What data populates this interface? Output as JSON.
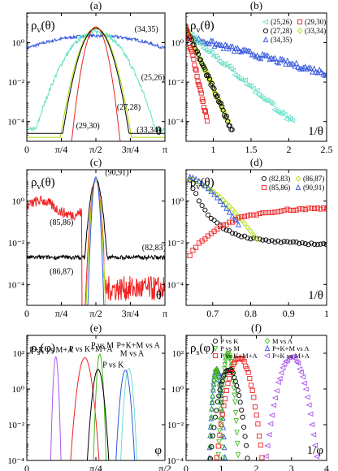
{
  "figure": {
    "panels": [
      {
        "id": "a",
        "label": "(a)",
        "ylabel": "ρv(θ)",
        "xlabel": "θ"
      },
      {
        "id": "b",
        "label": "(b)",
        "ylabel": "ρv(θ)",
        "xlabel": "1/θ"
      },
      {
        "id": "c",
        "label": "(c)",
        "ylabel": "ρv(θ)",
        "xlabel": "θ"
      },
      {
        "id": "d",
        "label": "(d)",
        "ylabel": "ρv(θ)",
        "xlabel": "1/θ"
      },
      {
        "id": "e",
        "label": "(e)",
        "ylabel": "ρs(φ)",
        "xlabel": "φ"
      },
      {
        "id": "f",
        "label": "(f)",
        "ylabel": "ρs(φ)",
        "xlabel": "1/φ"
      }
    ]
  },
  "chart_data": [
    {
      "panel": "a",
      "type": "line",
      "title": "(a)",
      "xlabel": "θ",
      "ylabel": "ρv(θ)",
      "xlim": [
        0,
        3.1416
      ],
      "ylim_log10": [
        -5,
        1.5
      ],
      "yscale": "log",
      "xticks": [
        {
          "v": 0,
          "t": "0"
        },
        {
          "v": 0.7854,
          "t": "π/4"
        },
        {
          "v": 1.5708,
          "t": "π/2"
        },
        {
          "v": 2.3562,
          "t": "3π/4"
        },
        {
          "v": 3.1416,
          "t": "π"
        }
      ],
      "yticks": [
        {
          "v": 0,
          "t": "10⁰"
        },
        {
          "v": -2,
          "t": "10⁻²"
        },
        {
          "v": -4,
          "t": "10⁻⁴"
        }
      ],
      "series": [
        {
          "name": "(34,35)",
          "color": "#3355dd",
          "kind": "gauss",
          "peak": 0.35,
          "width": 2.4,
          "floor": -1.8,
          "noise": 0.08
        },
        {
          "name": "(25,26)",
          "color": "#66e0c8",
          "kind": "gauss",
          "peak": 0.55,
          "width": 0.75,
          "floor": -4.4,
          "noise": 0.12
        },
        {
          "name": "(33,34)",
          "color": "#aadd00",
          "kind": "gauss",
          "peak": 0.75,
          "width": 0.42,
          "floor": -4.8,
          "noise": 0.0
        },
        {
          "name": "(27,28)",
          "color": "#000000",
          "kind": "gauss",
          "peak": 0.72,
          "width": 0.4,
          "floor": -4.6,
          "noise": 0.0
        },
        {
          "name": "(29,30)",
          "color": "#ee2222",
          "kind": "gauss",
          "peak": 0.8,
          "width": 0.28,
          "floor": -5,
          "noise": 0.0
        }
      ],
      "annotations": [
        {
          "text": "(34,35)",
          "x": 2.45,
          "y": 0.55,
          "color": "#3355dd"
        },
        {
          "text": "(25,26)",
          "x": 2.6,
          "y": -1.9,
          "color": "#66e0c8"
        },
        {
          "text": "(27,28)",
          "x": 2.05,
          "y": -3.4,
          "color": "#000000"
        },
        {
          "text": "(29,30)",
          "x": 1.12,
          "y": -4.35,
          "color": "#ee2222"
        },
        {
          "text": "(33,34)",
          "x": 2.5,
          "y": -4.55,
          "color": "#aadd00"
        }
      ]
    },
    {
      "panel": "b",
      "type": "scatter",
      "title": "(b)",
      "xlabel": "1/θ",
      "ylabel": "ρv(θ)",
      "xlim": [
        0.64,
        2.5
      ],
      "ylim_log10": [
        -5,
        1.5
      ],
      "yscale": "log",
      "xticks": [
        {
          "v": 1,
          "t": "1"
        },
        {
          "v": 1.5,
          "t": "1.5"
        },
        {
          "v": 2,
          "t": "2"
        },
        {
          "v": 2.5,
          "t": "2.5"
        }
      ],
      "yticks": [
        {
          "v": 0,
          "t": "10⁰"
        },
        {
          "v": -2,
          "t": "10⁻²"
        },
        {
          "v": -4,
          "t": "10⁻⁴"
        }
      ],
      "legend": [
        {
          "name": "(25,26)",
          "marker": "tri-left",
          "color": "#66e0c8"
        },
        {
          "name": "(29,30)",
          "marker": "square",
          "color": "#ee2222"
        },
        {
          "name": "(27,28)",
          "marker": "circle",
          "color": "#000000"
        },
        {
          "name": "(33,34)",
          "marker": "diamond",
          "color": "#aadd00"
        },
        {
          "name": "(34,35)",
          "marker": "tri-up",
          "color": "#3355dd"
        }
      ],
      "series": [
        {
          "name": "(34,35)",
          "color": "#3355dd",
          "marker": "tri-up",
          "x0": 0.64,
          "x1": 2.5,
          "y0": 0.3,
          "slope": -1.0,
          "n": 80
        },
        {
          "name": "(25,26)",
          "color": "#66e0c8",
          "marker": "tri-left",
          "x0": 0.64,
          "x1": 2.05,
          "y0": 0.6,
          "slope": -3.3,
          "n": 55
        },
        {
          "name": "(33,34)",
          "color": "#aadd00",
          "marker": "diamond",
          "x0": 0.64,
          "x1": 1.2,
          "y0": 0.75,
          "slope": -8.5,
          "n": 40
        },
        {
          "name": "(27,28)",
          "color": "#000000",
          "marker": "circle",
          "x0": 0.64,
          "x1": 1.25,
          "y0": 0.72,
          "slope": -8.5,
          "n": 42
        },
        {
          "name": "(29,30)",
          "color": "#ee2222",
          "marker": "square",
          "x0": 0.64,
          "x1": 0.92,
          "y0": 0.8,
          "slope": -17,
          "n": 26
        }
      ]
    },
    {
      "panel": "c",
      "type": "line",
      "title": "(c)",
      "xlabel": "θ",
      "ylabel": "ρv(θ)",
      "xlim": [
        0,
        3.1416
      ],
      "ylim_log10": [
        -5,
        1.5
      ],
      "yscale": "log",
      "xticks": [
        {
          "v": 0,
          "t": "0"
        },
        {
          "v": 0.7854,
          "t": "π/4"
        },
        {
          "v": 1.5708,
          "t": "π/2"
        },
        {
          "v": 2.3562,
          "t": "3π/4"
        },
        {
          "v": 3.1416,
          "t": "π"
        }
      ],
      "yticks": [
        {
          "v": 0,
          "t": "10⁰"
        },
        {
          "v": -2,
          "t": "10⁻²"
        },
        {
          "v": -4,
          "t": "10⁻⁴"
        }
      ],
      "series": [
        {
          "name": "(82,83)",
          "color": "#000000",
          "kind": "gauss",
          "peak": 1.0,
          "width": 0.16,
          "floor": -2.7,
          "noise": 0.1
        },
        {
          "name": "(85,86)",
          "color": "#ee2222",
          "kind": "custom"
        },
        {
          "name": "(86,87)",
          "color": "#aadd00",
          "kind": "gauss",
          "peak": 1.05,
          "width": 0.11,
          "floor": -5,
          "noise": 0.0
        },
        {
          "name": "(90,91)",
          "color": "#3355dd",
          "kind": "gauss",
          "peak": 1.15,
          "width": 0.09,
          "floor": -5,
          "noise": 0.0
        }
      ],
      "annotations": [
        {
          "text": "(90,91)",
          "x": 1.78,
          "y": 1.25,
          "color": "#3355dd"
        },
        {
          "text": "(85,86)",
          "x": 0.52,
          "y": -1.15,
          "color": "#ee2222"
        },
        {
          "text": "(82,83)",
          "x": 2.62,
          "y": -2.35,
          "color": "#000000"
        },
        {
          "text": "(86,87)",
          "x": 0.52,
          "y": -3.5,
          "color": "#aadd00"
        }
      ]
    },
    {
      "panel": "d",
      "type": "scatter",
      "title": "(d)",
      "xlabel": "1/θ",
      "ylabel": "ρv(θ)",
      "xlim": [
        0.63,
        1.0
      ],
      "ylim_log10": [
        -5,
        1.5
      ],
      "yscale": "log",
      "xticks": [
        {
          "v": 0.7,
          "t": "0.7"
        },
        {
          "v": 0.8,
          "t": "0.8"
        },
        {
          "v": 0.9,
          "t": "0.9"
        },
        {
          "v": 1.0,
          "t": "1"
        }
      ],
      "yticks": [
        {
          "v": 0,
          "t": "10⁰"
        },
        {
          "v": -2,
          "t": "10⁻²"
        },
        {
          "v": -4,
          "t": "10⁻⁴"
        }
      ],
      "legend": [
        {
          "name": "(82,83)",
          "marker": "circle",
          "color": "#000000"
        },
        {
          "name": "(86,87)",
          "marker": "diamond",
          "color": "#aadd00"
        },
        {
          "name": "(85,86)",
          "marker": "square",
          "color": "#ee2222"
        },
        {
          "name": "(90,91)",
          "marker": "tri-up",
          "color": "#3355dd"
        }
      ],
      "series": [
        {
          "name": "(82,83)",
          "color": "#000000",
          "marker": "circle",
          "kind": "d82"
        },
        {
          "name": "(86,87)",
          "color": "#aadd00",
          "marker": "diamond",
          "kind": "d86"
        },
        {
          "name": "(85,86)",
          "color": "#ee2222",
          "marker": "square",
          "kind": "d85"
        },
        {
          "name": "(90,91)",
          "color": "#3355dd",
          "marker": "tri-up",
          "kind": "d90"
        }
      ]
    },
    {
      "panel": "e",
      "type": "line",
      "title": "(e)",
      "xlabel": "φ",
      "ylabel": "ρs(φ)",
      "xlim": [
        0,
        1.5708
      ],
      "ylim_log10": [
        -4,
        3
      ],
      "yscale": "log",
      "xticks": [
        {
          "v": 0,
          "t": "0"
        },
        {
          "v": 0.7854,
          "t": "π/4"
        },
        {
          "v": 1.5708,
          "t": "π/2"
        }
      ],
      "yticks": [
        {
          "v": 2,
          "t": "10²"
        },
        {
          "v": 0,
          "t": "10⁰"
        },
        {
          "v": -2,
          "t": "10⁻²"
        },
        {
          "v": -4,
          "t": "10⁻⁴"
        }
      ],
      "series": [
        {
          "name": "P+K vs M+A",
          "color": "#aa55ee",
          "center": 0.33,
          "peak": 1.8,
          "width": 0.018
        },
        {
          "name": "P vs K+M+A",
          "color": "#ee2222",
          "center": 0.66,
          "peak": 1.75,
          "width": 0.05
        },
        {
          "name": "P vs M",
          "color": "#44bb22",
          "center": 0.83,
          "peak": 1.95,
          "width": 0.022
        },
        {
          "name": "P vs K",
          "color": "#000000",
          "center": 0.81,
          "peak": 1.1,
          "width": 0.04
        },
        {
          "name": "M vs A",
          "color": "#66e0c8",
          "center": 1.16,
          "peak": 1.15,
          "width": 0.03
        },
        {
          "name": "P+K+M vs A",
          "color": "#3355dd",
          "center": 1.12,
          "peak": 1.05,
          "width": 0.035
        }
      ],
      "annotations": [
        {
          "text": "P+K vs M+A",
          "x": 0.03,
          "y": 2.05,
          "color": "#aa55ee"
        },
        {
          "text": "P vs K+M+A",
          "x": 0.48,
          "y": 2.1,
          "color": "#ee2222"
        },
        {
          "text": "P vs M",
          "x": 0.73,
          "y": 2.3,
          "color": "#44bb22"
        },
        {
          "text": "P vs K",
          "x": 0.86,
          "y": 1.2,
          "color": "#000000"
        },
        {
          "text": "P+K+M vs A",
          "x": 1.02,
          "y": 2.3,
          "color": "#3355dd"
        },
        {
          "text": "M vs A",
          "x": 1.06,
          "y": 1.85,
          "color": "#44bb22"
        }
      ]
    },
    {
      "panel": "f",
      "type": "scatter",
      "title": "(f)",
      "xlabel": "1/φ",
      "ylabel": "ρs(φ)",
      "xlim": [
        0,
        4
      ],
      "ylim_log10": [
        -4,
        3
      ],
      "yscale": "log",
      "xticks": [
        {
          "v": 0,
          "t": "0"
        },
        {
          "v": 1,
          "t": "1"
        },
        {
          "v": 2,
          "t": "2"
        },
        {
          "v": 3,
          "t": "3"
        },
        {
          "v": 4,
          "t": "4"
        }
      ],
      "yticks": [
        {
          "v": 2,
          "t": "10²"
        },
        {
          "v": 0,
          "t": "10⁰"
        },
        {
          "v": -2,
          "t": "10⁻²"
        },
        {
          "v": -4,
          "t": "10⁻⁴"
        }
      ],
      "legend": [
        {
          "name": "P vs K",
          "marker": "circle",
          "color": "#000000"
        },
        {
          "name": "M vs A",
          "marker": "diamond",
          "color": "#44bb22"
        },
        {
          "name": "P vs M",
          "marker": "tri-down",
          "color": "#44bb22"
        },
        {
          "name": "P+K+M vs A",
          "marker": "tri-up",
          "color": "#3355dd"
        },
        {
          "name": "P vs K+M+A",
          "marker": "square",
          "color": "#ee2222"
        },
        {
          "name": "P+K vs M+A",
          "marker": "tri-left",
          "color": "#aa55ee"
        }
      ],
      "series": [
        {
          "name": "P+K+M vs A",
          "color": "#3355dd",
          "marker": "tri-up",
          "center": 0.88,
          "peak": 1.1,
          "width": 0.06
        },
        {
          "name": "M vs A",
          "color": "#44bb22",
          "marker": "diamond",
          "center": 0.86,
          "peak": 1.1,
          "width": 0.05
        },
        {
          "name": "P vs M",
          "color": "#44bb22",
          "marker": "tri-down",
          "center": 1.2,
          "peak": 1.95,
          "width": 0.07
        },
        {
          "name": "P vs K",
          "color": "#000000",
          "marker": "circle",
          "center": 1.22,
          "peak": 1.1,
          "width": 0.14
        },
        {
          "name": "P vs K+M+A",
          "color": "#ee2222",
          "marker": "square",
          "center": 1.52,
          "peak": 1.75,
          "width": 0.16
        },
        {
          "name": "P+K vs M+A",
          "color": "#aa55ee",
          "marker": "tri-left",
          "center": 3.0,
          "peak": 1.8,
          "width": 0.18
        }
      ]
    }
  ]
}
